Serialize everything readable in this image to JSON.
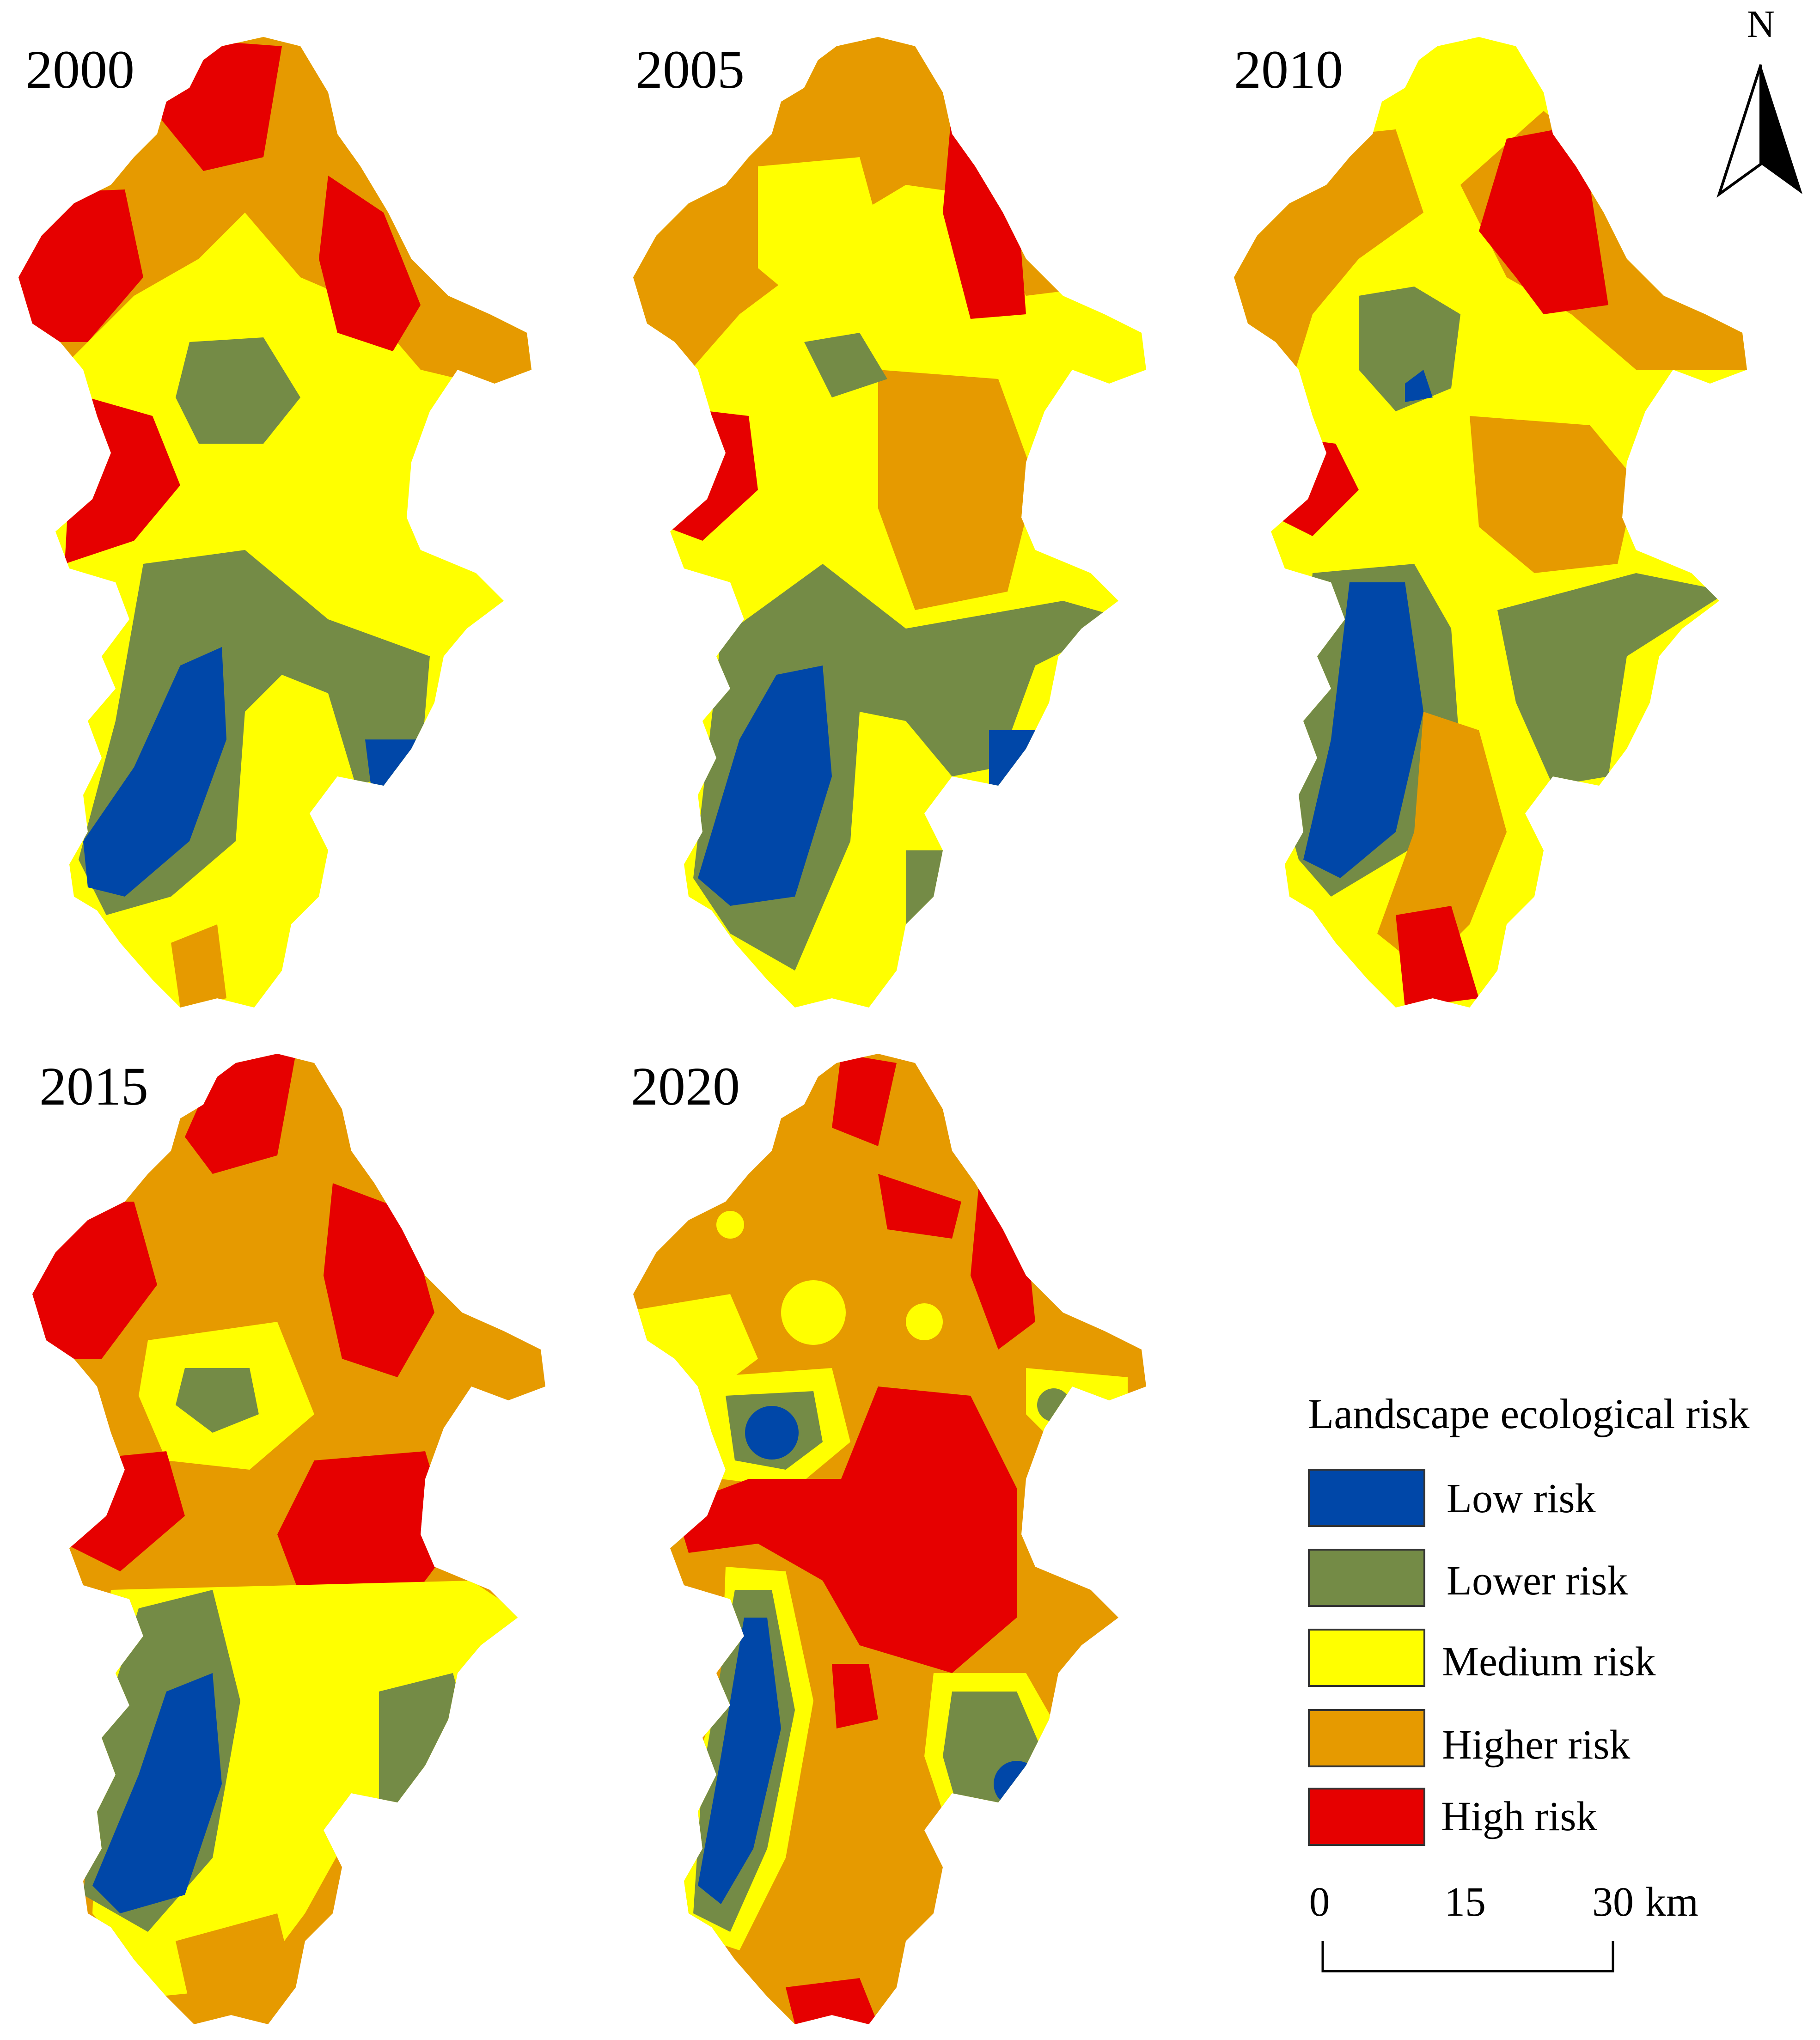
{
  "panels": [
    {
      "id": "p2000",
      "year": "2000"
    },
    {
      "id": "p2005",
      "year": "2005"
    },
    {
      "id": "p2010",
      "year": "2010"
    },
    {
      "id": "p2015",
      "year": "2015"
    },
    {
      "id": "p2020",
      "year": "2020"
    }
  ],
  "north_arrow": {
    "label": "N"
  },
  "legend": {
    "title": "Landscape ecological risk",
    "items": [
      {
        "label": "Low risk",
        "color": "#0047a8"
      },
      {
        "label": "Lower risk",
        "color": "#748b46"
      },
      {
        "label": "Medium risk",
        "color": "#ffff00"
      },
      {
        "label": "Higher risk",
        "color": "#e69a00"
      },
      {
        "label": "High risk",
        "color": "#e60000"
      }
    ]
  },
  "scale_bar": {
    "ticks": [
      "0",
      "15",
      "30"
    ],
    "unit": "km"
  },
  "colors": {
    "low": "#0047a8",
    "lower": "#748b46",
    "medium": "#ffff00",
    "higher": "#e69a00",
    "high": "#e60000"
  }
}
